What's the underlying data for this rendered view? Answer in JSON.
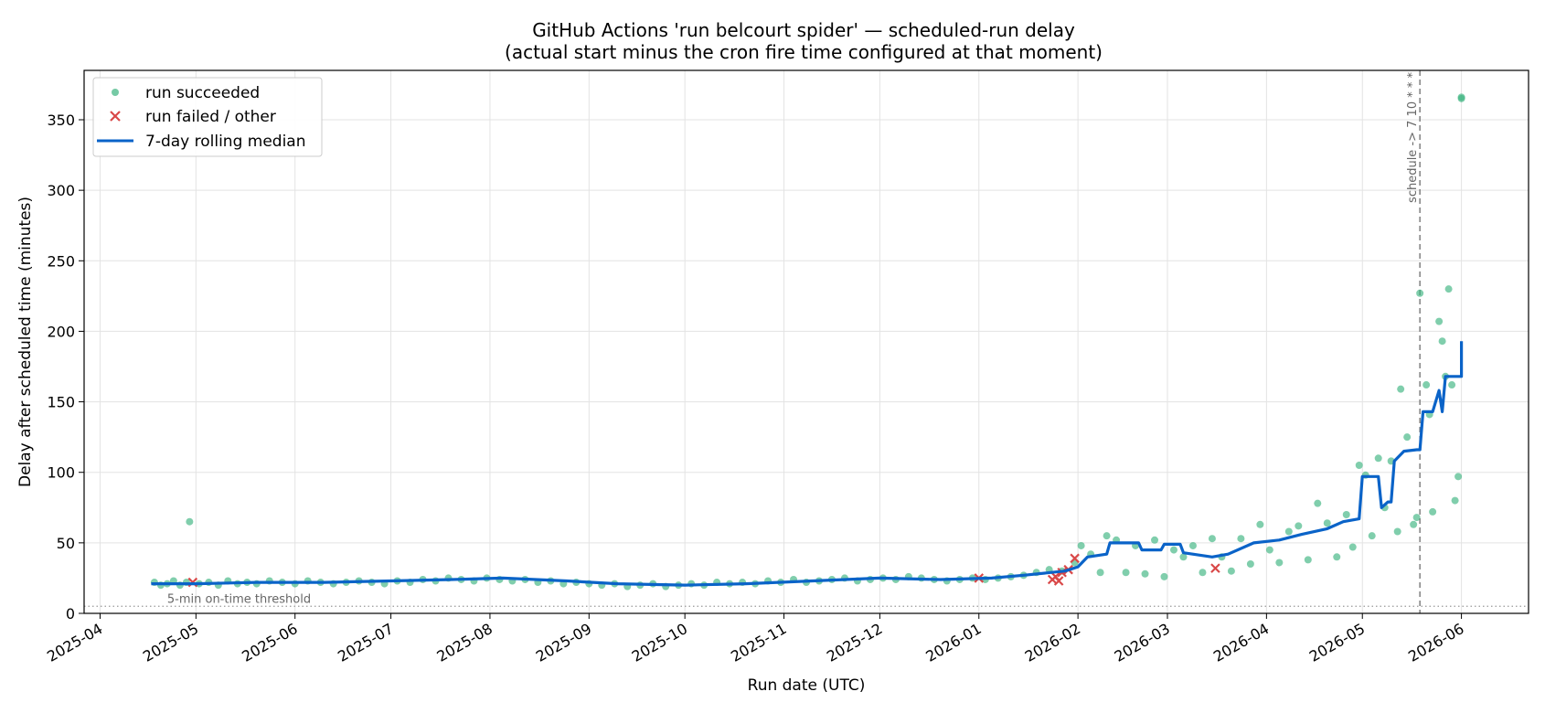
{
  "chart_data": {
    "type": "scatter",
    "title_line1": "GitHub Actions 'run belcourt spider' — scheduled-run delay",
    "title_line2": "(actual start minus the cron fire time configured at that moment)",
    "xlabel": "Run date (UTC)",
    "ylabel": "Delay after scheduled time (minutes)",
    "ylim": [
      0,
      385
    ],
    "xlim": [
      "2025-03-27",
      "2026-06-22"
    ],
    "x_ticks": [
      "2025-04",
      "2025-05",
      "2025-06",
      "2025-07",
      "2025-08",
      "2025-09",
      "2025-10",
      "2025-11",
      "2025-12",
      "2026-01",
      "2026-02",
      "2026-03",
      "2026-04",
      "2026-05",
      "2026-06"
    ],
    "y_ticks": [
      0,
      50,
      100,
      150,
      200,
      250,
      300,
      350
    ],
    "grid": true,
    "legend_position": "top-left",
    "colors": {
      "succeeded": "#3cb47f",
      "failed": "#d94848",
      "median": "#0a63c8",
      "threshold": "#999999",
      "schedule_line": "#777777"
    },
    "series": [
      {
        "name": "run succeeded",
        "kind": "scatter",
        "points": [
          [
            "2025-04-18",
            22
          ],
          [
            "2025-04-20",
            20
          ],
          [
            "2025-04-22",
            21
          ],
          [
            "2025-04-24",
            23
          ],
          [
            "2025-04-26",
            20
          ],
          [
            "2025-04-28",
            22
          ],
          [
            "2025-04-29",
            65
          ],
          [
            "2025-05-02",
            21
          ],
          [
            "2025-05-05",
            22
          ],
          [
            "2025-05-08",
            20
          ],
          [
            "2025-05-11",
            23
          ],
          [
            "2025-05-14",
            21
          ],
          [
            "2025-05-17",
            22
          ],
          [
            "2025-05-20",
            21
          ],
          [
            "2025-05-24",
            23
          ],
          [
            "2025-05-28",
            22
          ],
          [
            "2025-06-01",
            21
          ],
          [
            "2025-06-05",
            23
          ],
          [
            "2025-06-09",
            22
          ],
          [
            "2025-06-13",
            21
          ],
          [
            "2025-06-17",
            22
          ],
          [
            "2025-06-21",
            23
          ],
          [
            "2025-06-25",
            22
          ],
          [
            "2025-06-29",
            21
          ],
          [
            "2025-07-03",
            23
          ],
          [
            "2025-07-07",
            22
          ],
          [
            "2025-07-11",
            24
          ],
          [
            "2025-07-15",
            23
          ],
          [
            "2025-07-19",
            25
          ],
          [
            "2025-07-23",
            24
          ],
          [
            "2025-07-27",
            23
          ],
          [
            "2025-07-31",
            25
          ],
          [
            "2025-08-04",
            24
          ],
          [
            "2025-08-08",
            23
          ],
          [
            "2025-08-12",
            24
          ],
          [
            "2025-08-16",
            22
          ],
          [
            "2025-08-20",
            23
          ],
          [
            "2025-08-24",
            21
          ],
          [
            "2025-08-28",
            22
          ],
          [
            "2025-09-01",
            21
          ],
          [
            "2025-09-05",
            20
          ],
          [
            "2025-09-09",
            21
          ],
          [
            "2025-09-13",
            19
          ],
          [
            "2025-09-17",
            20
          ],
          [
            "2025-09-21",
            21
          ],
          [
            "2025-09-25",
            19
          ],
          [
            "2025-09-29",
            20
          ],
          [
            "2025-10-03",
            21
          ],
          [
            "2025-10-07",
            20
          ],
          [
            "2025-10-11",
            22
          ],
          [
            "2025-10-15",
            21
          ],
          [
            "2025-10-19",
            22
          ],
          [
            "2025-10-23",
            21
          ],
          [
            "2025-10-27",
            23
          ],
          [
            "2025-10-31",
            22
          ],
          [
            "2025-11-04",
            24
          ],
          [
            "2025-11-08",
            22
          ],
          [
            "2025-11-12",
            23
          ],
          [
            "2025-11-16",
            24
          ],
          [
            "2025-11-20",
            25
          ],
          [
            "2025-11-24",
            23
          ],
          [
            "2025-11-28",
            24
          ],
          [
            "2025-12-02",
            25
          ],
          [
            "2025-12-06",
            24
          ],
          [
            "2025-12-10",
            26
          ],
          [
            "2025-12-14",
            25
          ],
          [
            "2025-12-18",
            24
          ],
          [
            "2025-12-22",
            23
          ],
          [
            "2025-12-26",
            24
          ],
          [
            "2025-12-30",
            25
          ],
          [
            "2026-01-03",
            24
          ],
          [
            "2026-01-07",
            25
          ],
          [
            "2026-01-11",
            26
          ],
          [
            "2026-01-15",
            27
          ],
          [
            "2026-01-19",
            29
          ],
          [
            "2026-01-23",
            31
          ],
          [
            "2026-01-27",
            30
          ],
          [
            "2026-01-31",
            36
          ],
          [
            "2026-02-02",
            48
          ],
          [
            "2026-02-05",
            42
          ],
          [
            "2026-02-08",
            29
          ],
          [
            "2026-02-10",
            55
          ],
          [
            "2026-02-13",
            52
          ],
          [
            "2026-02-16",
            29
          ],
          [
            "2026-02-19",
            48
          ],
          [
            "2026-02-22",
            28
          ],
          [
            "2026-02-25",
            52
          ],
          [
            "2026-02-28",
            26
          ],
          [
            "2026-03-03",
            45
          ],
          [
            "2026-03-06",
            40
          ],
          [
            "2026-03-09",
            48
          ],
          [
            "2026-03-12",
            29
          ],
          [
            "2026-03-15",
            53
          ],
          [
            "2026-03-18",
            40
          ],
          [
            "2026-03-21",
            30
          ],
          [
            "2026-03-24",
            53
          ],
          [
            "2026-03-27",
            35
          ],
          [
            "2026-03-30",
            63
          ],
          [
            "2026-04-02",
            45
          ],
          [
            "2026-04-05",
            36
          ],
          [
            "2026-04-08",
            58
          ],
          [
            "2026-04-11",
            62
          ],
          [
            "2026-04-14",
            38
          ],
          [
            "2026-04-17",
            78
          ],
          [
            "2026-04-20",
            64
          ],
          [
            "2026-04-23",
            40
          ],
          [
            "2026-04-26",
            70
          ],
          [
            "2026-04-28",
            47
          ],
          [
            "2026-04-30",
            105
          ],
          [
            "2026-05-02",
            98
          ],
          [
            "2026-05-04",
            55
          ],
          [
            "2026-05-06",
            110
          ],
          [
            "2026-05-08",
            75
          ],
          [
            "2026-05-10",
            108
          ],
          [
            "2026-05-12",
            58
          ],
          [
            "2026-05-13",
            159
          ],
          [
            "2026-05-15",
            125
          ],
          [
            "2026-05-17",
            63
          ],
          [
            "2026-05-18",
            68
          ],
          [
            "2026-05-19",
            227
          ],
          [
            "2026-05-21",
            162
          ],
          [
            "2026-05-22",
            141
          ],
          [
            "2026-05-23",
            72
          ],
          [
            "2026-05-25",
            207
          ],
          [
            "2026-05-26",
            193
          ],
          [
            "2026-05-27",
            168
          ],
          [
            "2026-05-28",
            230
          ],
          [
            "2026-05-29",
            162
          ],
          [
            "2026-05-30",
            80
          ],
          [
            "2026-05-31",
            97
          ],
          [
            "2026-06-01",
            366
          ],
          [
            "2026-06-01",
            365
          ]
        ]
      },
      {
        "name": "run failed / other",
        "kind": "x-marker",
        "points": [
          [
            "2025-04-30",
            22
          ],
          [
            "2026-01-01",
            25
          ],
          [
            "2026-01-24",
            24
          ],
          [
            "2026-01-25",
            26
          ],
          [
            "2026-01-26",
            23
          ],
          [
            "2026-01-27",
            29
          ],
          [
            "2026-01-29",
            31
          ],
          [
            "2026-01-31",
            39
          ],
          [
            "2026-03-16",
            32
          ]
        ]
      },
      {
        "name": "7-day rolling median",
        "kind": "line",
        "points": [
          [
            "2025-04-17",
            21
          ],
          [
            "2025-05-01",
            21
          ],
          [
            "2025-05-20",
            22
          ],
          [
            "2025-06-10",
            22
          ],
          [
            "2025-07-01",
            23
          ],
          [
            "2025-07-20",
            24
          ],
          [
            "2025-08-05",
            25
          ],
          [
            "2025-08-25",
            23
          ],
          [
            "2025-09-10",
            21
          ],
          [
            "2025-10-01",
            20
          ],
          [
            "2025-10-20",
            21
          ],
          [
            "2025-11-10",
            23
          ],
          [
            "2025-12-01",
            25
          ],
          [
            "2025-12-20",
            24
          ],
          [
            "2026-01-05",
            25
          ],
          [
            "2026-01-15",
            27
          ],
          [
            "2026-01-28",
            30
          ],
          [
            "2026-02-01",
            33
          ],
          [
            "2026-02-04",
            40
          ],
          [
            "2026-02-10",
            42
          ],
          [
            "2026-02-11",
            50
          ],
          [
            "2026-02-20",
            50
          ],
          [
            "2026-02-21",
            45
          ],
          [
            "2026-02-27",
            45
          ],
          [
            "2026-02-28",
            49
          ],
          [
            "2026-03-05",
            49
          ],
          [
            "2026-03-06",
            43
          ],
          [
            "2026-03-15",
            40
          ],
          [
            "2026-03-20",
            42
          ],
          [
            "2026-03-28",
            50
          ],
          [
            "2026-04-05",
            52
          ],
          [
            "2026-04-12",
            56
          ],
          [
            "2026-04-20",
            60
          ],
          [
            "2026-04-25",
            65
          ],
          [
            "2026-04-30",
            67
          ],
          [
            "2026-05-01",
            97
          ],
          [
            "2026-05-06",
            97
          ],
          [
            "2026-05-07",
            75
          ],
          [
            "2026-05-09",
            79
          ],
          [
            "2026-05-10",
            79
          ],
          [
            "2026-05-11",
            108
          ],
          [
            "2026-05-14",
            115
          ],
          [
            "2026-05-18",
            116
          ],
          [
            "2026-05-19",
            116
          ],
          [
            "2026-05-20",
            143
          ],
          [
            "2026-05-23",
            143
          ],
          [
            "2026-05-25",
            158
          ],
          [
            "2026-05-26",
            143
          ],
          [
            "2026-05-27",
            168
          ],
          [
            "2026-06-01",
            168
          ],
          [
            "2026-06-01",
            193
          ]
        ]
      }
    ],
    "threshold": {
      "value": 5,
      "label": "5-min on-time threshold"
    },
    "schedule_change": {
      "date": "2026-05-19",
      "label": "schedule -> 7 10 * * *"
    }
  }
}
